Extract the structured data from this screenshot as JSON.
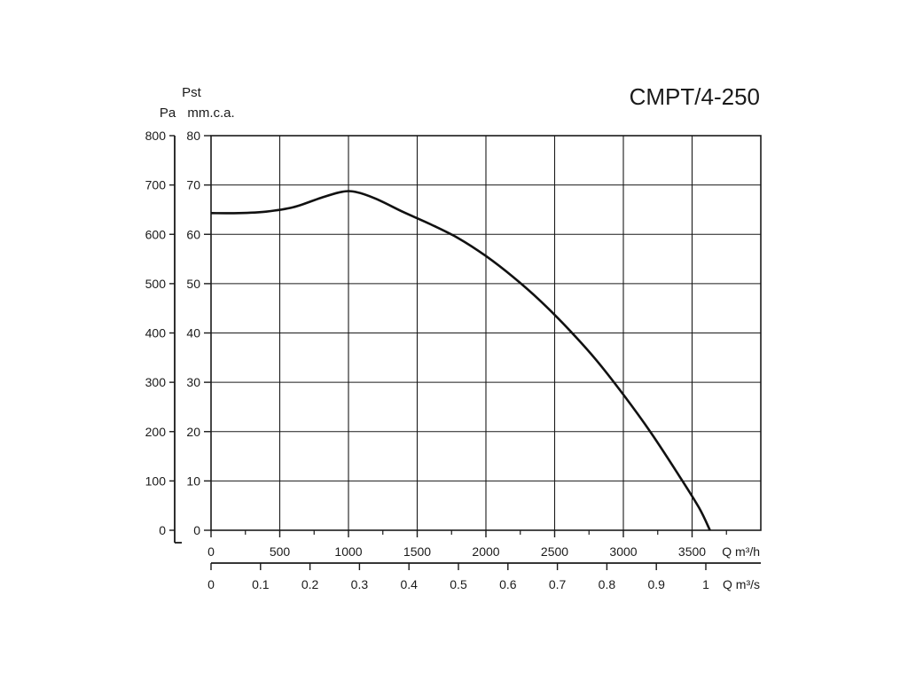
{
  "chart_data": {
    "type": "line",
    "title": "CMPT/4-250",
    "ylabel_top": "Pst",
    "ylabel_pa": "Pa",
    "ylabel_mmca": "mm.c.a.",
    "xlabel_m3h": "Q m³/h",
    "xlabel_m3s": "Q m³/s",
    "xlim": [
      0,
      4000
    ],
    "ylim": [
      0,
      80
    ],
    "grid": true,
    "x_ticks_m3h": [
      0,
      500,
      1000,
      1500,
      2000,
      2500,
      3000,
      3500
    ],
    "x_ticks_m3s": [
      {
        "value": 0,
        "label": "0"
      },
      {
        "value": 0.1,
        "label": "0.1"
      },
      {
        "value": 0.2,
        "label": "0.2"
      },
      {
        "value": 0.3,
        "label": "0.3"
      },
      {
        "value": 0.4,
        "label": "0.4"
      },
      {
        "value": 0.5,
        "label": "0.5"
      },
      {
        "value": 0.6,
        "label": "0.6"
      },
      {
        "value": 0.7,
        "label": "0.7"
      },
      {
        "value": 0.8,
        "label": "0.8"
      },
      {
        "value": 0.9,
        "label": "0.9"
      },
      {
        "value": 1,
        "label": "1"
      }
    ],
    "y_ticks_mmca": [
      0,
      10,
      20,
      30,
      40,
      50,
      60,
      70,
      80
    ],
    "y_ticks_pa": [
      0,
      100,
      200,
      300,
      400,
      500,
      600,
      700,
      800
    ],
    "series": [
      {
        "x": [
          0,
          200,
          400,
          600,
          800,
          950,
          1050,
          1200,
          1400,
          1600,
          1800,
          2000,
          2200,
          2400,
          2600,
          2800,
          3000,
          3200,
          3400,
          3550,
          3630
        ],
        "y": [
          64.3,
          64.3,
          64.6,
          65.5,
          67.4,
          68.6,
          68.6,
          67.2,
          64.5,
          62.0,
          59.2,
          55.6,
          51.3,
          46.4,
          40.8,
          34.6,
          27.5,
          19.8,
          11.3,
          4.6,
          0
        ]
      }
    ]
  }
}
